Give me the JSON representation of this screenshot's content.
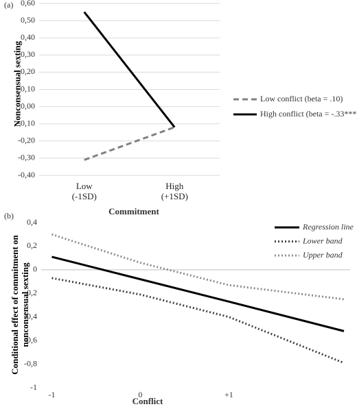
{
  "chart_data": [
    {
      "type": "line",
      "panel_label": "(a)",
      "x_label": "Commitment",
      "y_label": "Nonconsensual sexting",
      "categories": [
        "Low (-1SD)",
        "High (+1SD)"
      ],
      "series": [
        {
          "name": "Low conflict (beta = .10)",
          "color": "#808080",
          "linestyle": "dashed",
          "values": [
            -0.31,
            -0.12
          ]
        },
        {
          "name": "High conflict (beta = -.33***)",
          "color": "#000000",
          "linestyle": "solid",
          "values": [
            0.55,
            -0.12
          ]
        }
      ],
      "ylim": [
        -0.4,
        0.6
      ],
      "yticks": [
        {
          "value": -0.4,
          "label": "-0,40"
        },
        {
          "value": -0.3,
          "label": "-0,30"
        },
        {
          "value": -0.2,
          "label": "-0,20"
        },
        {
          "value": -0.1,
          "label": "-0,10"
        },
        {
          "value": 0,
          "label": "0,00"
        },
        {
          "value": 0.1,
          "label": "0,10"
        },
        {
          "value": 0.2,
          "label": "0,20"
        },
        {
          "value": 0.3,
          "label": "0,30"
        },
        {
          "value": 0.4,
          "label": "0,40"
        },
        {
          "value": 0.5,
          "label": "0,50"
        },
        {
          "value": 0.6,
          "label": "0,60"
        }
      ],
      "grid": true,
      "legend": "right"
    },
    {
      "type": "line",
      "panel_label": "(b)",
      "x_label": "Conflict",
      "y_label": "Conditional effect of commitment on nonconsensual sexting",
      "x": [
        -1,
        0,
        1,
        2.3
      ],
      "series": [
        {
          "name": "Regression line",
          "color": "#000000",
          "linestyle": "solid",
          "values": [
            0.11,
            -0.08,
            -0.27,
            -0.52
          ]
        },
        {
          "name": "Lower band",
          "color": "#404040",
          "linestyle": "dotted",
          "values": [
            -0.07,
            -0.21,
            -0.4,
            -0.79
          ]
        },
        {
          "name": "Upper band",
          "color": "#8c8c8c",
          "linestyle": "dotted",
          "values": [
            0.3,
            0.06,
            -0.13,
            -0.25
          ]
        }
      ],
      "xlim": [
        -1.12,
        2.37
      ],
      "xticks": [
        -1,
        0,
        {
          "value": 1,
          "label": "+1"
        }
      ],
      "ylim": [
        -1,
        0.4
      ],
      "yticks": [
        -1,
        {
          "value": -0.8,
          "label": "-0,8"
        },
        {
          "value": -0.6,
          "label": "-0,6"
        },
        {
          "value": -0.4,
          "label": "-0,4"
        },
        {
          "value": -0.2,
          "label": "-0,2"
        },
        0,
        {
          "value": 0.2,
          "label": "0,2"
        },
        {
          "value": 0.4,
          "label": "0,4"
        }
      ],
      "grid": false,
      "zero_line": true,
      "legend": "top right"
    }
  ]
}
